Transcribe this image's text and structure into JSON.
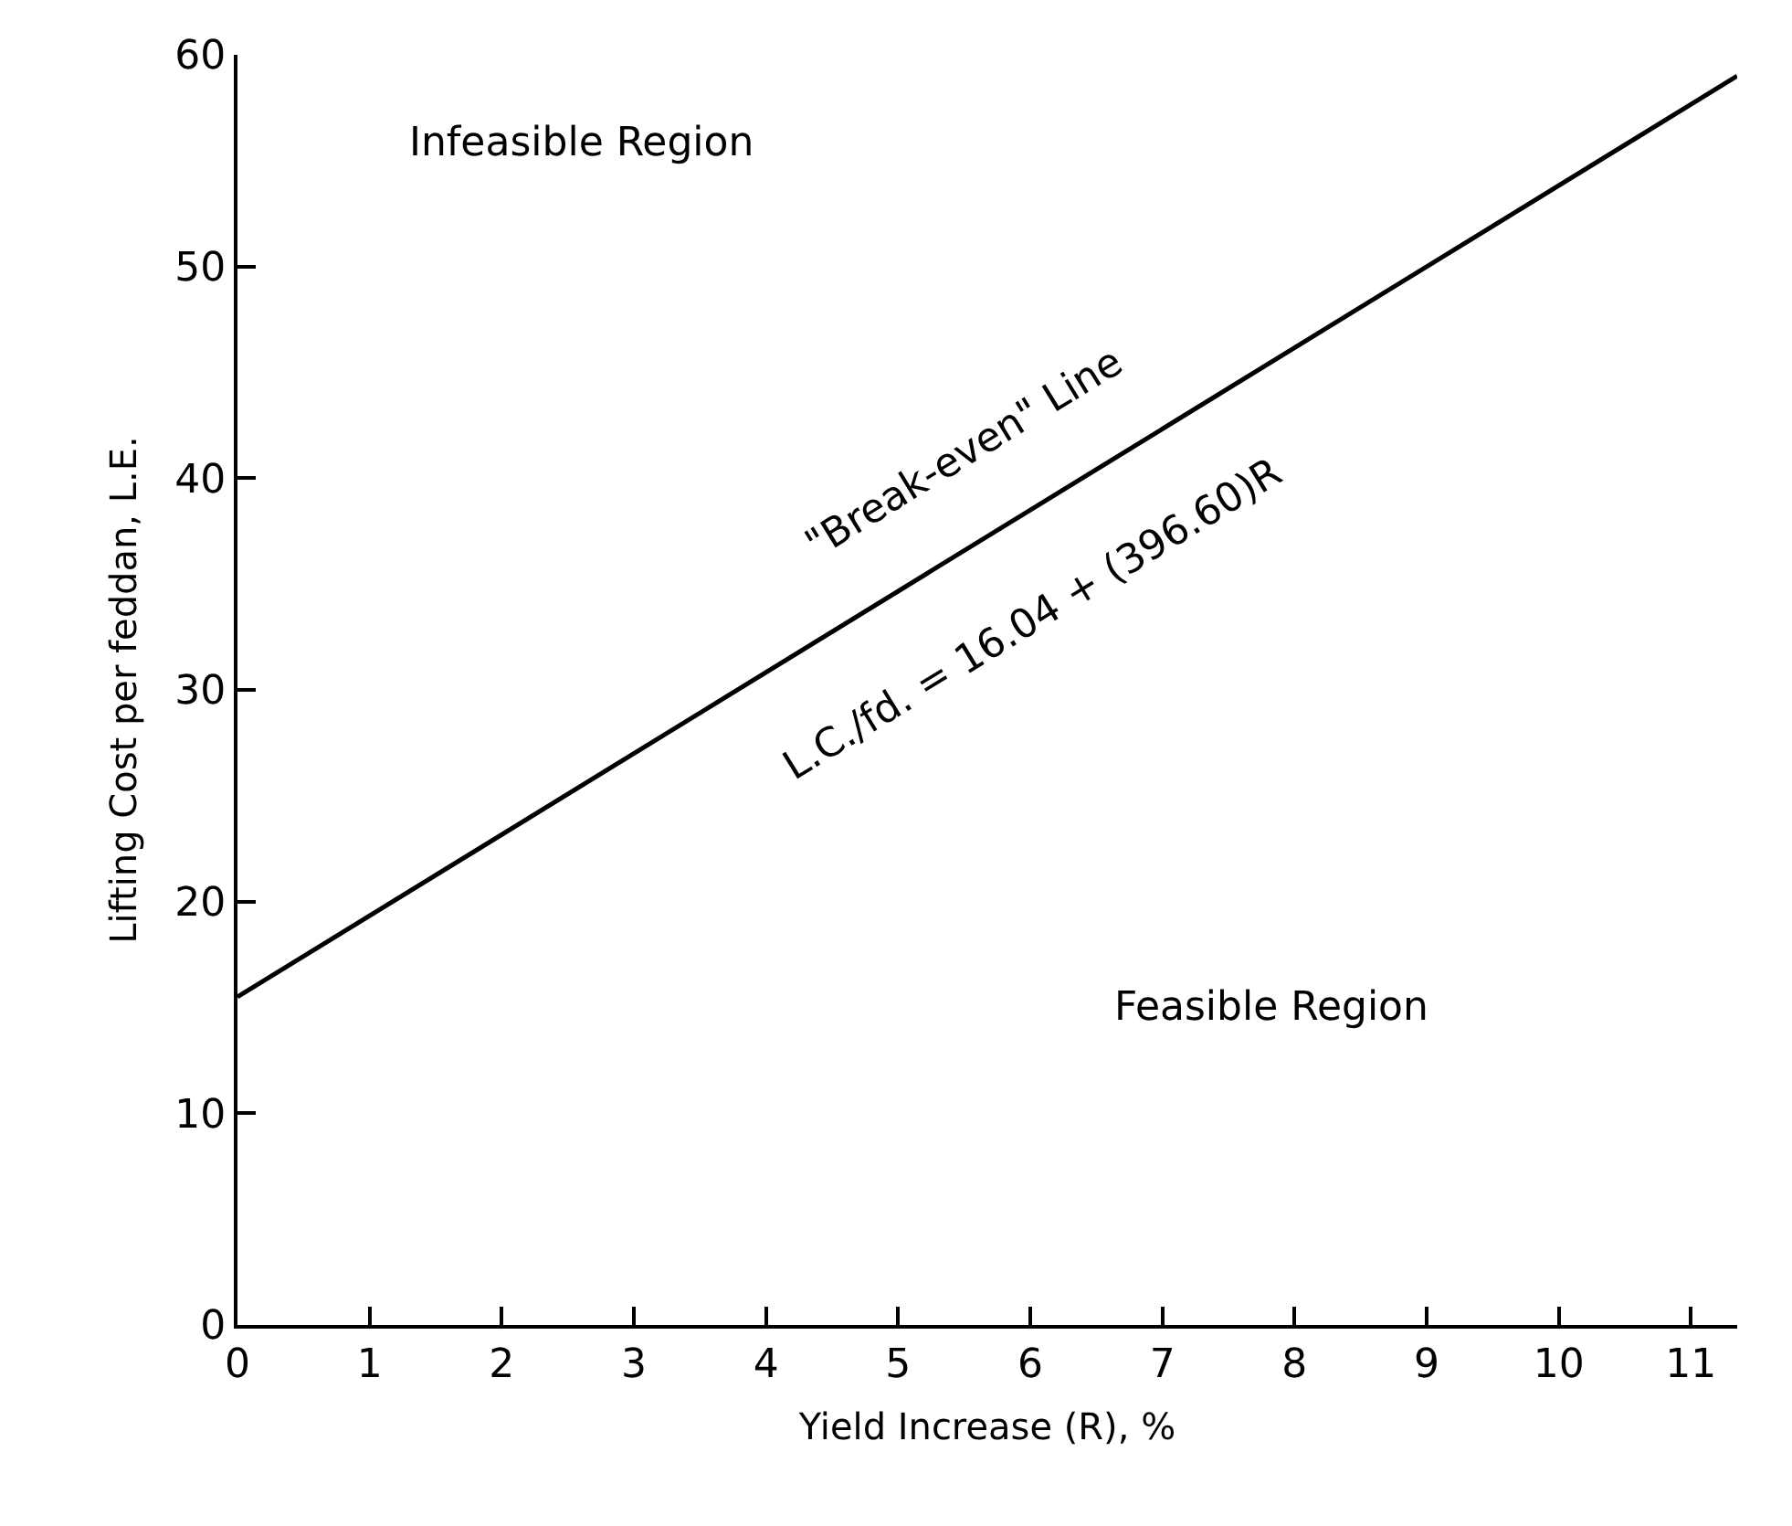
{
  "chart_data": {
    "type": "line",
    "xlabel": "Yield Increase (R), %",
    "ylabel": "Lifting Cost per feddan, L.E.",
    "x": [
      0,
      11.35
    ],
    "series": [
      {
        "color": "#000000",
        "values": [
          15.5,
          59
        ]
      }
    ],
    "xlim": [
      0,
      11.35
    ],
    "xticks": [
      0,
      1,
      2,
      3,
      4,
      5,
      6,
      7,
      8,
      9,
      10,
      11
    ],
    "ylim": [
      0,
      60
    ],
    "yticks": [
      0,
      10,
      20,
      30,
      40,
      50,
      60
    ],
    "legend": false,
    "marker": "none",
    "line_style": "solid",
    "annotations": [
      "Infeasible Region",
      "\"Break-even\" Line",
      "L.C./fd. = 16.04 + (396.60)R",
      "Feasible Region"
    ]
  }
}
